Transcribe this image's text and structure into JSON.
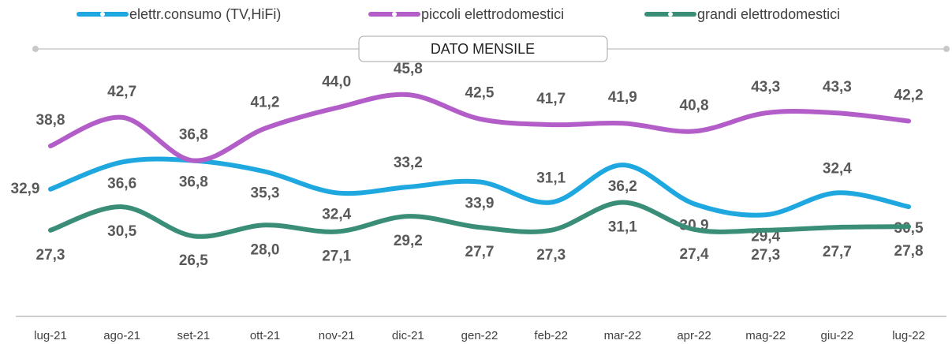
{
  "chart_data": {
    "type": "line",
    "title": "DATO MENSILE",
    "categories": [
      "lug-21",
      "ago-21",
      "set-21",
      "ott-21",
      "nov-21",
      "dic-21",
      "gen-22",
      "feb-22",
      "mar-22",
      "apr-22",
      "mag-22",
      "giu-22",
      "lug-22"
    ],
    "series": [
      {
        "name": "elettr.consumo (TV,HiFi)",
        "color": "#1fa8e0",
        "values": [
          32.9,
          36.6,
          36.8,
          35.3,
          32.4,
          33.2,
          33.9,
          31.1,
          36.2,
          30.9,
          29.4,
          32.4,
          30.5
        ],
        "value_labels": [
          "32,9",
          "36,6",
          "36,8",
          "35,3",
          "32,4",
          "33,2",
          "33,9",
          "31,1",
          "36,2",
          "30,9",
          "29,4",
          "32,4",
          "30,5"
        ]
      },
      {
        "name": "piccoli elettrodomestici",
        "color": "#b35dc9",
        "values": [
          38.8,
          42.7,
          36.8,
          41.2,
          44.0,
          45.8,
          42.5,
          41.7,
          41.9,
          40.8,
          43.3,
          43.3,
          42.2
        ],
        "value_labels": [
          "38,8",
          "42,7",
          "36,8",
          "41,2",
          "44,0",
          "45,8",
          "42,5",
          "41,7",
          "41,9",
          "40,8",
          "43,3",
          "43,3",
          "42,2"
        ]
      },
      {
        "name": "grandi elettrodomestici",
        "color": "#3a8e78",
        "values": [
          27.3,
          30.5,
          26.5,
          28.0,
          27.1,
          29.2,
          27.7,
          27.3,
          31.1,
          27.4,
          27.3,
          27.7,
          27.8
        ],
        "value_labels": [
          "27,3",
          "30,5",
          "26,5",
          "28,0",
          "27,1",
          "29,2",
          "27,7",
          "27,3",
          "31,1",
          "27,4",
          "27,3",
          "27,7",
          "27,8"
        ]
      }
    ],
    "ylim": [
      15,
      50
    ]
  }
}
